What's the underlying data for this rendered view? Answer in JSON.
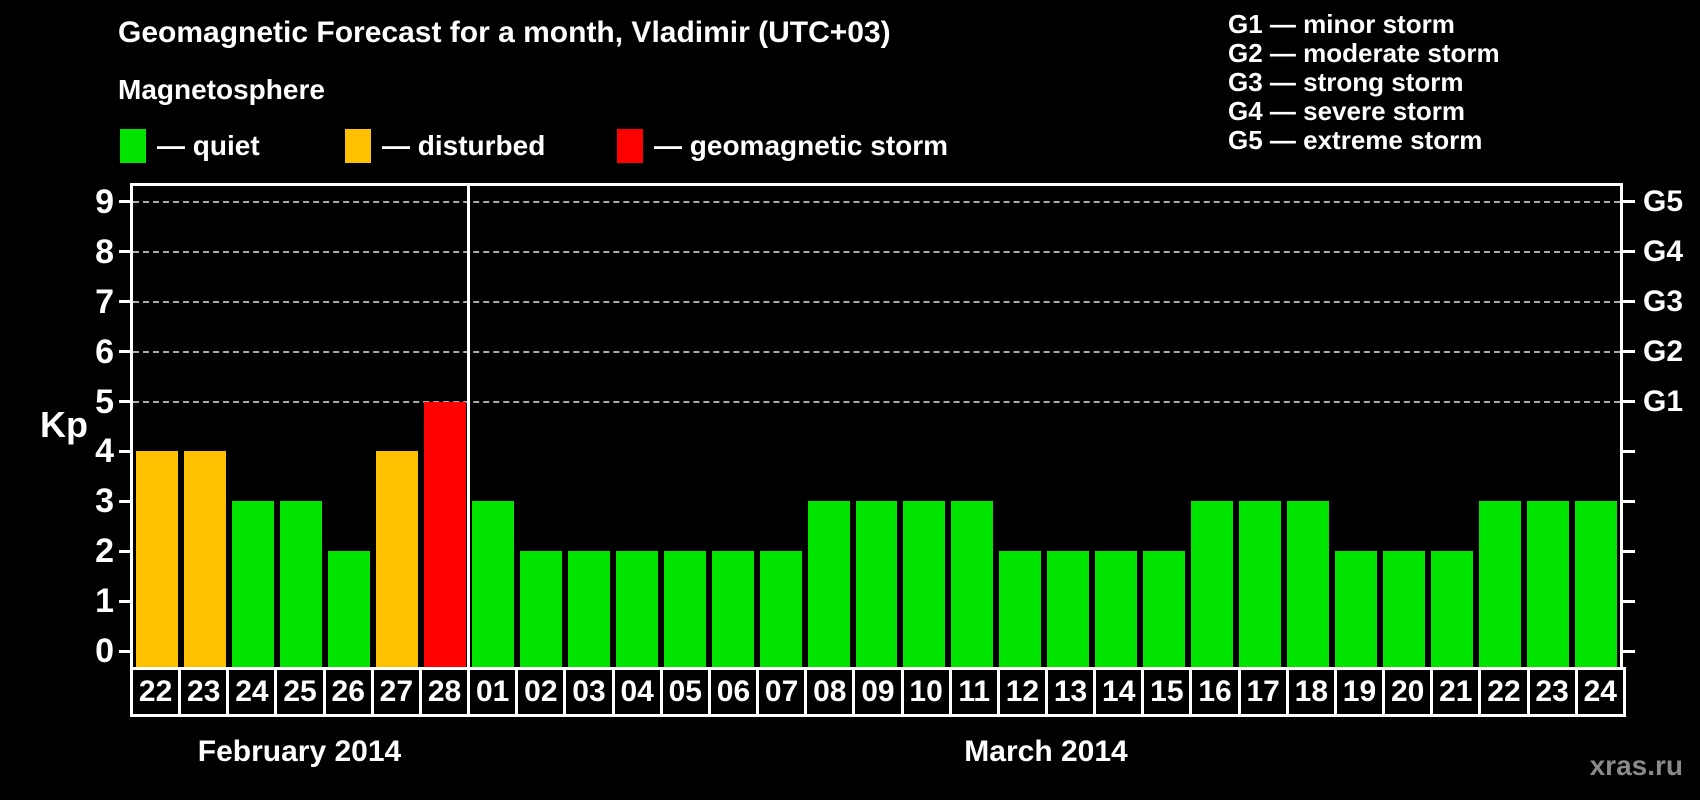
{
  "title": "Geomagnetic Forecast for a month, Vladimir (UTC+03)",
  "subtitle": "Magnetosphere",
  "kp_axis_label": "Kp",
  "watermark": "xras.ru",
  "colors": {
    "quiet": "#00E400",
    "disturbed": "#FFC000",
    "storm": "#FF0000",
    "grid": "#ABABAB",
    "text": "#FFFFFF",
    "watermark": "#8A8A8A"
  },
  "status_legend": [
    {
      "status": "quiet",
      "label": "— quiet"
    },
    {
      "status": "disturbed",
      "label": "— disturbed"
    },
    {
      "status": "storm",
      "label": "— geomagnetic storm"
    }
  ],
  "g_scale_legend": [
    "G1 — minor storm",
    "G2 — moderate storm",
    "G3 — strong storm",
    "G4 — severe storm",
    "G5 — extreme storm"
  ],
  "left_ticks": [
    0,
    1,
    2,
    3,
    4,
    5,
    6,
    7,
    8,
    9
  ],
  "right_tick_labels": [
    {
      "kp": 5,
      "label": "G1"
    },
    {
      "kp": 6,
      "label": "G2"
    },
    {
      "kp": 7,
      "label": "G3"
    },
    {
      "kp": 8,
      "label": "G4"
    },
    {
      "kp": 9,
      "label": "G5"
    }
  ],
  "chart_data": {
    "type": "bar",
    "ylabel": "Kp",
    "ylim": [
      0,
      9
    ],
    "grid": "dashed horizontal at Kp 5-9 only",
    "legend_position": "top",
    "gridlines_at": [
      5,
      6,
      7,
      8,
      9
    ],
    "months": [
      {
        "name": "February 2014",
        "days": [
          {
            "day": "22",
            "kp": 4,
            "status": "disturbed"
          },
          {
            "day": "23",
            "kp": 4,
            "status": "disturbed"
          },
          {
            "day": "24",
            "kp": 3,
            "status": "quiet"
          },
          {
            "day": "25",
            "kp": 3,
            "status": "quiet"
          },
          {
            "day": "26",
            "kp": 2,
            "status": "quiet"
          },
          {
            "day": "27",
            "kp": 4,
            "status": "disturbed"
          },
          {
            "day": "28",
            "kp": 5,
            "status": "storm"
          }
        ]
      },
      {
        "name": "March 2014",
        "days": [
          {
            "day": "01",
            "kp": 3,
            "status": "quiet"
          },
          {
            "day": "02",
            "kp": 2,
            "status": "quiet"
          },
          {
            "day": "03",
            "kp": 2,
            "status": "quiet"
          },
          {
            "day": "04",
            "kp": 2,
            "status": "quiet"
          },
          {
            "day": "05",
            "kp": 2,
            "status": "quiet"
          },
          {
            "day": "06",
            "kp": 2,
            "status": "quiet"
          },
          {
            "day": "07",
            "kp": 2,
            "status": "quiet"
          },
          {
            "day": "08",
            "kp": 3,
            "status": "quiet"
          },
          {
            "day": "09",
            "kp": 3,
            "status": "quiet"
          },
          {
            "day": "10",
            "kp": 3,
            "status": "quiet"
          },
          {
            "day": "11",
            "kp": 3,
            "status": "quiet"
          },
          {
            "day": "12",
            "kp": 2,
            "status": "quiet"
          },
          {
            "day": "13",
            "kp": 2,
            "status": "quiet"
          },
          {
            "day": "14",
            "kp": 2,
            "status": "quiet"
          },
          {
            "day": "15",
            "kp": 2,
            "status": "quiet"
          },
          {
            "day": "16",
            "kp": 3,
            "status": "quiet"
          },
          {
            "day": "17",
            "kp": 3,
            "status": "quiet"
          },
          {
            "day": "18",
            "kp": 3,
            "status": "quiet"
          },
          {
            "day": "19",
            "kp": 2,
            "status": "quiet"
          },
          {
            "day": "20",
            "kp": 2,
            "status": "quiet"
          },
          {
            "day": "21",
            "kp": 2,
            "status": "quiet"
          },
          {
            "day": "22",
            "kp": 3,
            "status": "quiet"
          },
          {
            "day": "23",
            "kp": 3,
            "status": "quiet"
          },
          {
            "day": "24",
            "kp": 3,
            "status": "quiet"
          }
        ]
      }
    ]
  }
}
